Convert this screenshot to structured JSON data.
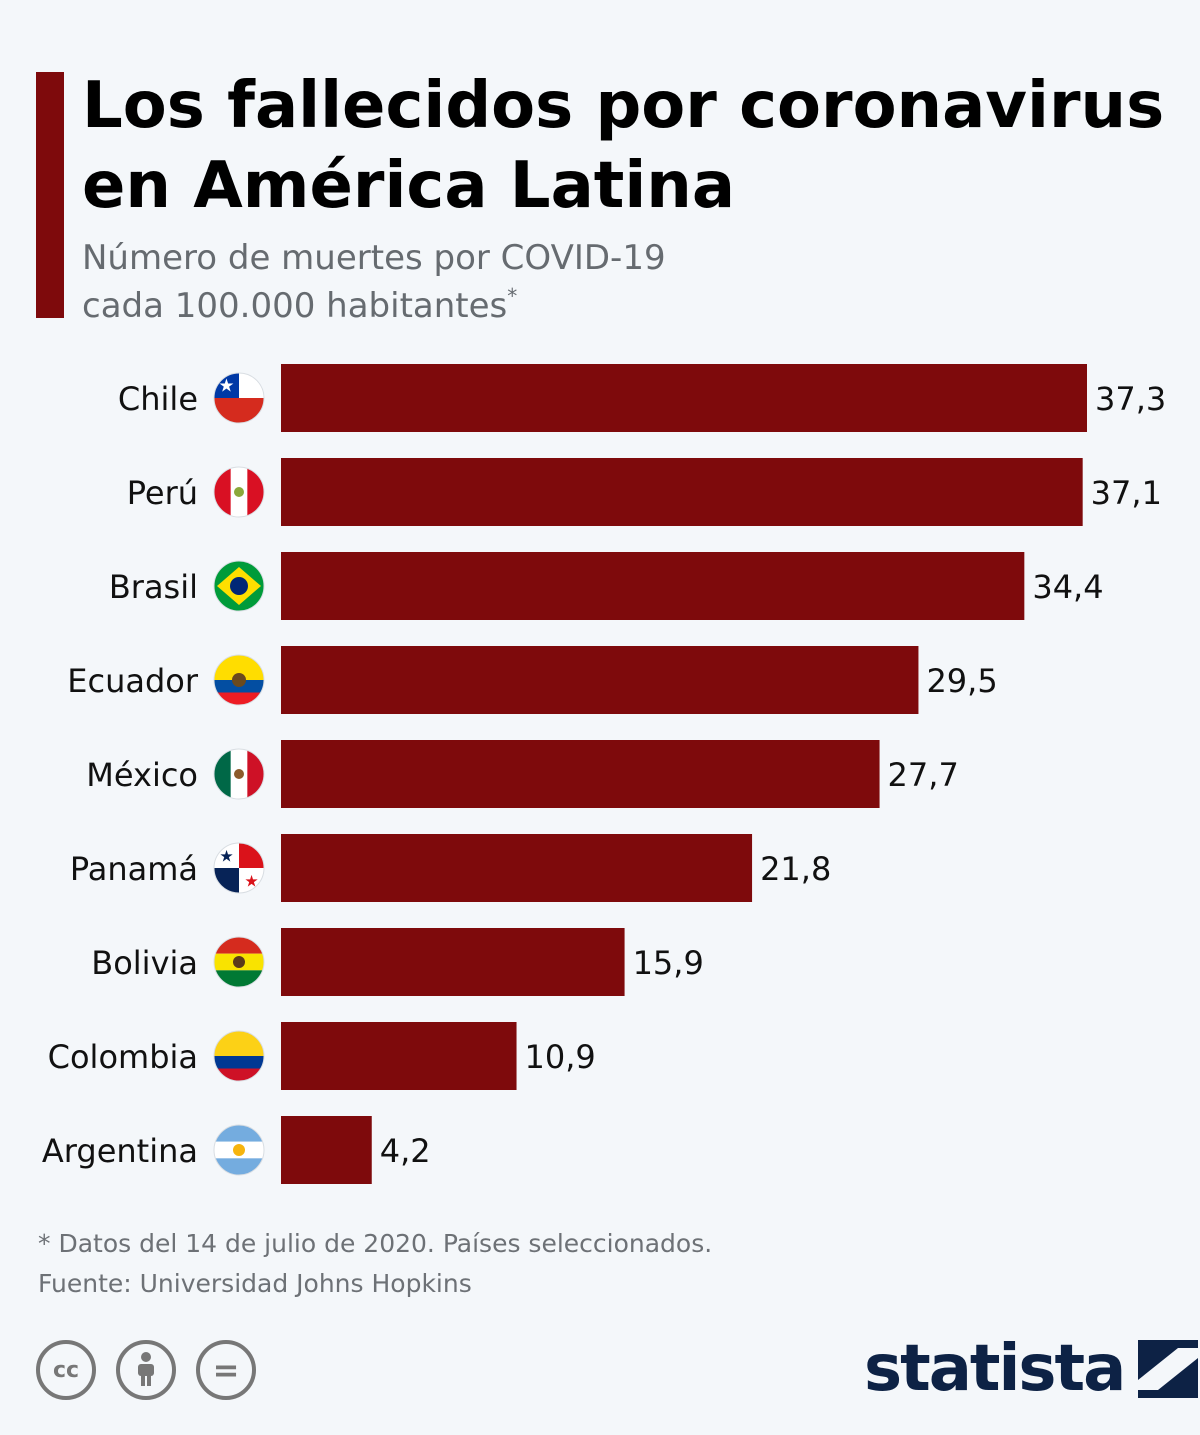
{
  "header": {
    "title_line1": "Los fallecidos por coronavirus",
    "title_line2": "en América Latina",
    "subtitle_line1": "Número de muertes por COVID-19",
    "subtitle_line2": "cada 100.000 habitantes",
    "subtitle_mark": "*"
  },
  "colors": {
    "bar": "#7e0a0c",
    "accent": "#7e0a0c",
    "text": "#000000",
    "muted": "#6d7176"
  },
  "chart_data": {
    "type": "bar",
    "orientation": "horizontal",
    "title": "Los fallecidos por coronavirus en América Latina",
    "subtitle": "Número de muertes por COVID-19 cada 100.000 habitantes*",
    "categories": [
      "Chile",
      "Perú",
      "Brasil",
      "Ecuador",
      "México",
      "Panamá",
      "Bolivia",
      "Colombia",
      "Argentina"
    ],
    "values": [
      37.3,
      37.1,
      34.4,
      29.5,
      27.7,
      21.8,
      15.9,
      10.9,
      4.2
    ],
    "value_labels": [
      "37,3",
      "37,1",
      "34,4",
      "29,5",
      "27,7",
      "21,8",
      "15,9",
      "10,9",
      "4,2"
    ],
    "flag_icons": [
      "chile-flag-icon",
      "peru-flag-icon",
      "brazil-flag-icon",
      "ecuador-flag-icon",
      "mexico-flag-icon",
      "panama-flag-icon",
      "bolivia-flag-icon",
      "colombia-flag-icon",
      "argentina-flag-icon"
    ],
    "xlabel": "",
    "ylabel": "",
    "grid": false,
    "legend": "none"
  },
  "footer": {
    "note": "* Datos del 14 de julio de 2020. Países seleccionados.",
    "source": "Fuente: Universidad Johns Hopkins",
    "license_icons": [
      "cc-icon",
      "attribution-icon",
      "no-derivatives-icon"
    ],
    "license_glyphs": [
      "cc",
      "",
      "="
    ],
    "logo": "statista"
  }
}
